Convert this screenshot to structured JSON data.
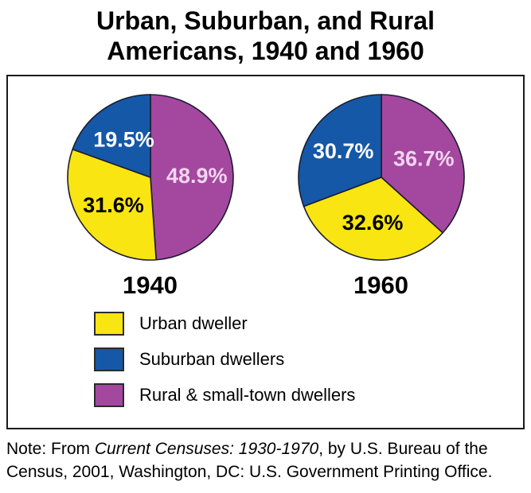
{
  "title": {
    "line1": "Urban, Suburban, and Rural",
    "line2": "Americans, 1940 and 1960"
  },
  "chart_data": [
    {
      "type": "pie",
      "title": "1940",
      "start_angle_deg": 0,
      "direction": "clockwise",
      "slices": [
        {
          "label": "Rural & small-town dwellers",
          "value": 48.9,
          "display": "48.9%",
          "color": "#A4479F",
          "text_color": "#F2D5EF"
        },
        {
          "label": "Urban dweller",
          "value": 31.6,
          "display": "31.6%",
          "color": "#F9E511",
          "text_color": "#000000"
        },
        {
          "label": "Suburban dwellers",
          "value": 19.5,
          "display": "19.5%",
          "color": "#1558A7",
          "text_color": "#FFFFFF"
        }
      ]
    },
    {
      "type": "pie",
      "title": "1960",
      "start_angle_deg": 0,
      "direction": "clockwise",
      "slices": [
        {
          "label": "Rural & small-town dwellers",
          "value": 36.7,
          "display": "36.7%",
          "color": "#A4479F",
          "text_color": "#F2D5EF"
        },
        {
          "label": "Urban dweller",
          "value": 32.6,
          "display": "32.6%",
          "color": "#F9E511",
          "text_color": "#000000"
        },
        {
          "label": "Suburban dwellers",
          "value": 30.7,
          "display": "30.7%",
          "color": "#1558A7",
          "text_color": "#FFFFFF"
        }
      ]
    }
  ],
  "legend": {
    "items": [
      {
        "label": "Urban dweller",
        "color": "#F9E511"
      },
      {
        "label": "Suburban dwellers",
        "color": "#1558A7"
      },
      {
        "label": "Rural & small-town dwellers",
        "color": "#A4479F"
      }
    ]
  },
  "note": {
    "line1": [
      {
        "text": "Note: From "
      },
      {
        "text": "Current Censuses: 1930-1970",
        "italic": true
      },
      {
        "text": ", by U.S. Bureau of the"
      }
    ],
    "line2": "Census, 2001, Washington, DC: U.S. Government Printing Office."
  },
  "colors": {
    "urban_yellow": "#F9E511",
    "suburban_blue": "#1558A7",
    "rural_purple": "#A4479F",
    "pie_outline": "#1c1c30"
  }
}
